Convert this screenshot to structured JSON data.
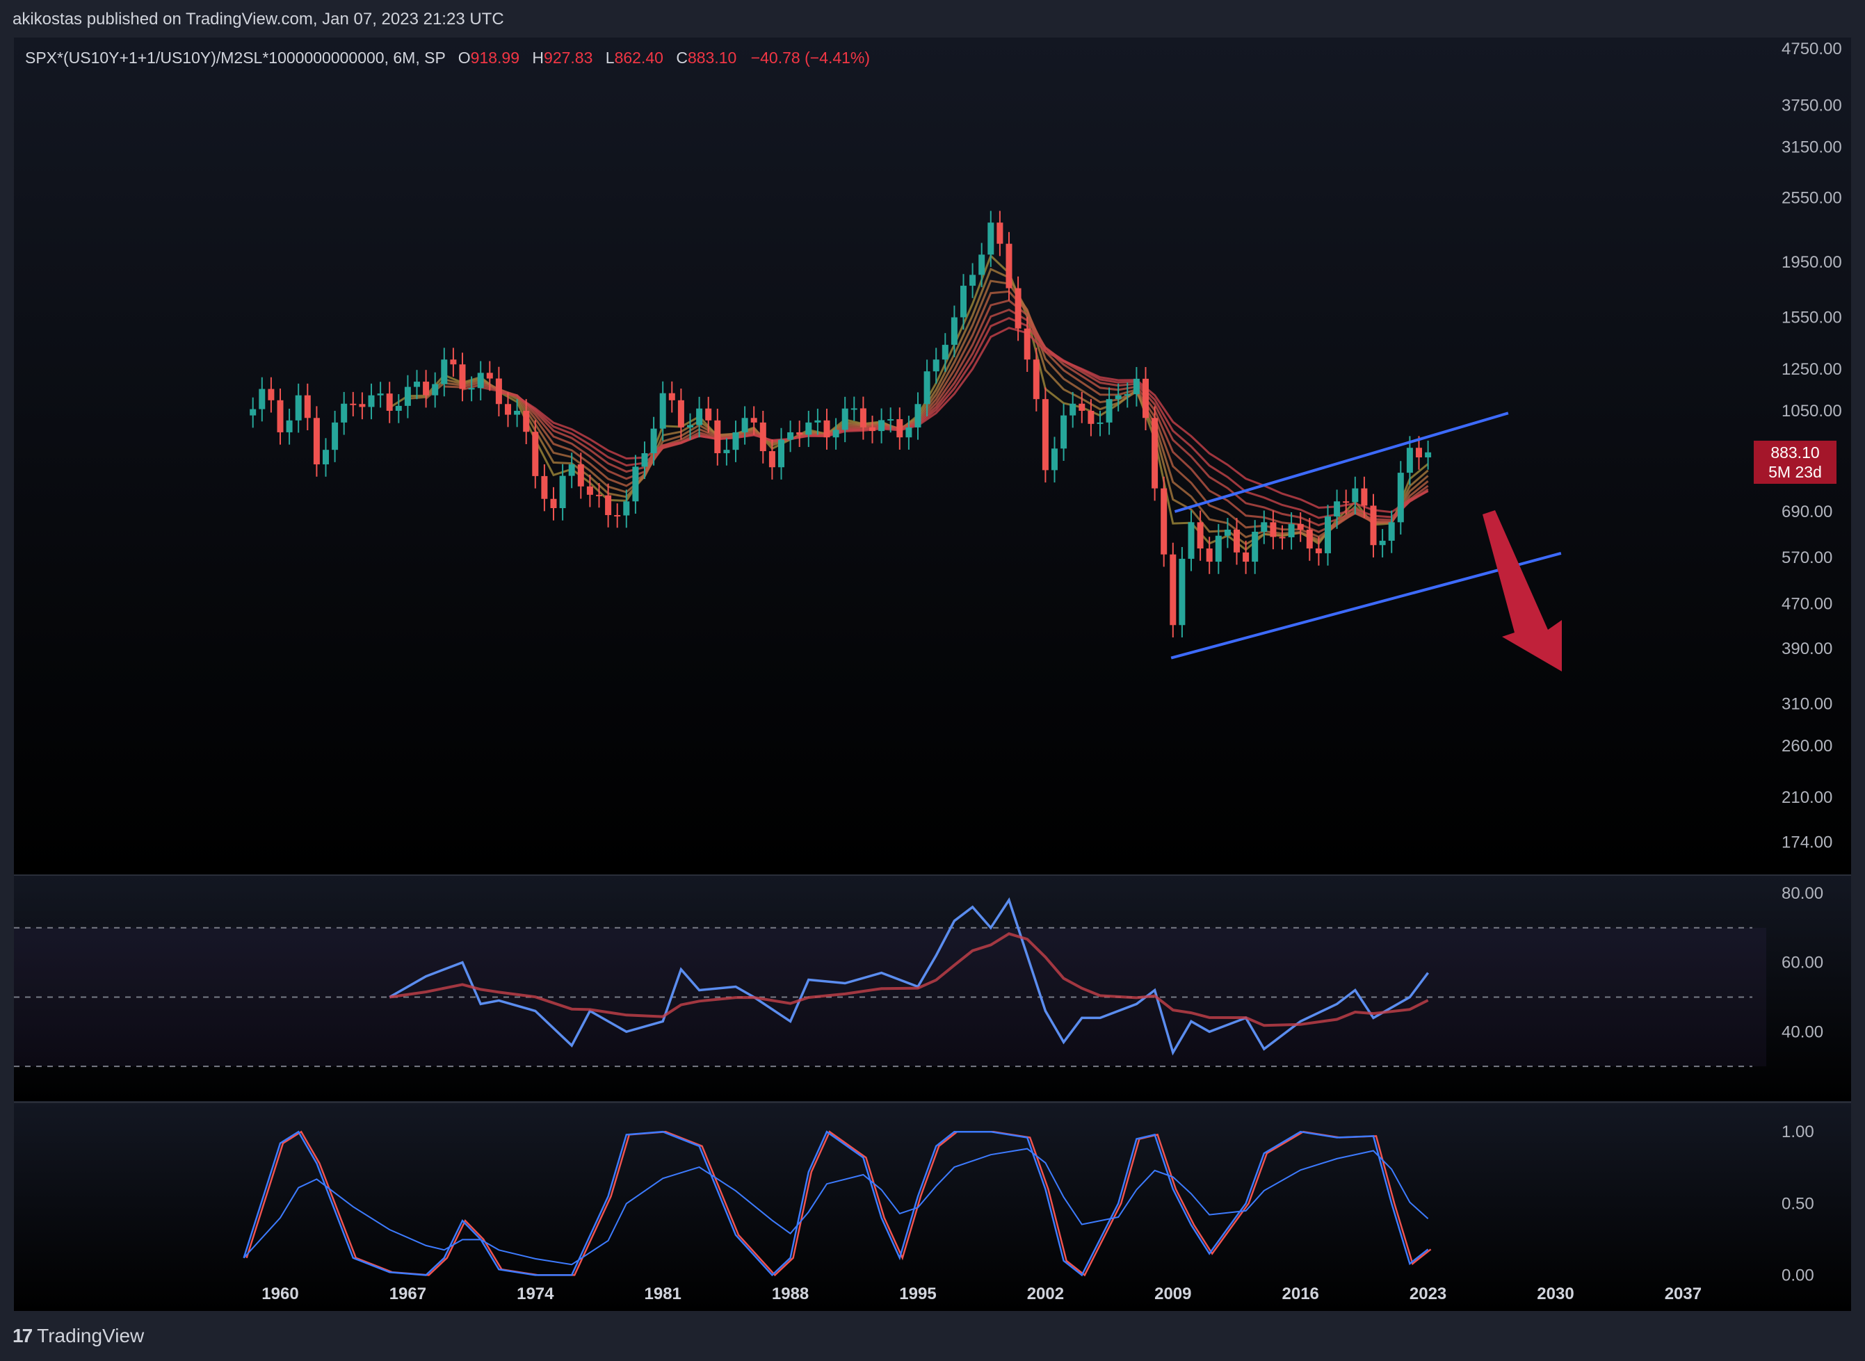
{
  "header": {
    "text": "akikostas published on TradingView.com, Jan 07, 2023 21:23 UTC"
  },
  "legend": {
    "symbol": "SPX*(US10Y+1+1/US10Y)/M2SL*1000000000000, 6M, SP",
    "o_label": "O",
    "o": "918.99",
    "h_label": "H",
    "h": "927.83",
    "l_label": "L",
    "l": "862.40",
    "c_label": "C",
    "c": "883.10",
    "change": "−40.78 (−4.41%)"
  },
  "badge": {
    "price": "883.10",
    "countdown": "5M 23d"
  },
  "footer": {
    "logo": "17",
    "brand": "TradingView"
  },
  "colors": {
    "up": "#26a69a",
    "down": "#ef5350",
    "channel": "#3d6bff",
    "arrow": "#c0213a",
    "rsi": "#5b8def",
    "bg_top": "#131722",
    "bg_bottom": "#000000"
  },
  "chart_data": [
    {
      "type": "candlestick",
      "title": "",
      "scale": "log",
      "y_ticks": [
        4750,
        3750,
        3150,
        2550,
        1950,
        1550,
        1250,
        1050,
        690,
        570,
        470,
        390,
        310,
        260,
        210,
        174
      ],
      "y_tick_labels": [
        "4750.00",
        "3750.00",
        "3150.00",
        "2550.00",
        "1950.00",
        "1550.00",
        "1250.00",
        "1050.00",
        "690.00",
        "570.00",
        "470.00",
        "390.00",
        "310.00",
        "260.00",
        "210.00",
        "174.00"
      ],
      "x_ticks": [
        1960,
        1967,
        1974,
        1981,
        1988,
        1995,
        2002,
        2009,
        2016,
        2023,
        2030,
        2037
      ],
      "price_path": [
        [
          1958,
          1030
        ],
        [
          1959,
          1150
        ],
        [
          1960,
          960
        ],
        [
          1961,
          1120
        ],
        [
          1962,
          840
        ],
        [
          1963,
          1000
        ],
        [
          1964,
          1080
        ],
        [
          1965,
          1120
        ],
        [
          1966,
          1050
        ],
        [
          1967,
          1160
        ],
        [
          1968,
          1120
        ],
        [
          1969,
          1300
        ],
        [
          1970,
          1150
        ],
        [
          1971,
          1230
        ],
        [
          1972,
          1080
        ],
        [
          1973,
          1050
        ],
        [
          1974,
          800
        ],
        [
          1975,
          700
        ],
        [
          1976,
          840
        ],
        [
          1977,
          740
        ],
        [
          1978,
          680
        ],
        [
          1979,
          720
        ],
        [
          1980,
          880
        ],
        [
          1981,
          1130
        ],
        [
          1982,
          980
        ],
        [
          1983,
          1060
        ],
        [
          1984,
          880
        ],
        [
          1985,
          960
        ],
        [
          1986,
          1000
        ],
        [
          1987,
          830
        ],
        [
          1988,
          960
        ],
        [
          1989,
          1000
        ],
        [
          1990,
          940
        ],
        [
          1991,
          1060
        ],
        [
          1992,
          980
        ],
        [
          1993,
          1010
        ],
        [
          1994,
          940
        ],
        [
          1995,
          1080
        ],
        [
          1996,
          1300
        ],
        [
          1997,
          1550
        ],
        [
          1998,
          1850
        ],
        [
          1999,
          2300
        ],
        [
          2000,
          1750
        ],
        [
          2001,
          1300
        ],
        [
          2002,
          820
        ],
        [
          2003,
          1030
        ],
        [
          2004,
          1050
        ],
        [
          2005,
          1000
        ],
        [
          2006,
          1120
        ],
        [
          2007,
          1200
        ],
        [
          2008,
          760
        ],
        [
          2009,
          430
        ],
        [
          2010,
          660
        ],
        [
          2011,
          560
        ],
        [
          2012,
          640
        ],
        [
          2013,
          560
        ],
        [
          2014,
          660
        ],
        [
          2015,
          620
        ],
        [
          2016,
          640
        ],
        [
          2017,
          580
        ],
        [
          2018,
          720
        ],
        [
          2019,
          760
        ],
        [
          2020,
          600
        ],
        [
          2021,
          660
        ],
        [
          2022,
          900
        ],
        [
          2023,
          883.1
        ]
      ],
      "trend_channel": {
        "upper": [
          [
            2009.1,
            690
          ],
          [
            2027.4,
            1040
          ]
        ],
        "lower": [
          [
            2008.9,
            375
          ],
          [
            2030.3,
            580
          ]
        ]
      },
      "forecast_arrow": "down"
    },
    {
      "type": "line",
      "title": "",
      "y_ticks": [
        80,
        60,
        40
      ],
      "y_tick_labels": [
        "80.00",
        "60.00",
        "40.00"
      ],
      "band": [
        30,
        70
      ],
      "midline": 50,
      "series": [
        {
          "values": [
            [
              1966,
              50
            ],
            [
              1968,
              56
            ],
            [
              1970,
              60
            ],
            [
              1971,
              48
            ],
            [
              1972,
              49
            ],
            [
              1974,
              46
            ],
            [
              1976,
              36
            ],
            [
              1977,
              46
            ],
            [
              1979,
              40
            ],
            [
              1981,
              43
            ],
            [
              1982,
              58
            ],
            [
              1983,
              52
            ],
            [
              1985,
              53
            ],
            [
              1986,
              50
            ],
            [
              1988,
              43
            ],
            [
              1989,
              55
            ],
            [
              1991,
              54
            ],
            [
              1993,
              57
            ],
            [
              1995,
              53
            ],
            [
              1996,
              62
            ],
            [
              1997,
              72
            ],
            [
              1998,
              76
            ],
            [
              1999,
              70
            ],
            [
              2000,
              78
            ],
            [
              2001,
              62
            ],
            [
              2002,
              46
            ],
            [
              2003,
              37
            ],
            [
              2004,
              44
            ],
            [
              2005,
              44
            ],
            [
              2007,
              48
            ],
            [
              2008,
              52
            ],
            [
              2009,
              34
            ],
            [
              2010,
              43
            ],
            [
              2011,
              40
            ],
            [
              2013,
              44
            ],
            [
              2014,
              35
            ],
            [
              2016,
              43
            ],
            [
              2018,
              48
            ],
            [
              2019,
              52
            ],
            [
              2020,
              44
            ],
            [
              2022,
              50
            ],
            [
              2023,
              57
            ]
          ]
        }
      ]
    },
    {
      "type": "line",
      "title": "",
      "y_ticks": [
        1.0,
        0.5,
        0.0
      ],
      "y_tick_labels": [
        "1.00",
        "0.50",
        "0.00"
      ],
      "series": [
        {
          "values": [
            [
              1958,
              0.12
            ],
            [
              1960,
              0.92
            ],
            [
              1961,
              1.0
            ],
            [
              1962,
              0.78
            ],
            [
              1964,
              0.12
            ],
            [
              1966,
              0.02
            ],
            [
              1968,
              0.0
            ],
            [
              1969,
              0.12
            ],
            [
              1970,
              0.38
            ],
            [
              1971,
              0.25
            ],
            [
              1972,
              0.04
            ],
            [
              1974,
              0.0
            ],
            [
              1976,
              0.0
            ],
            [
              1978,
              0.55
            ],
            [
              1979,
              0.98
            ],
            [
              1981,
              1.0
            ],
            [
              1983,
              0.9
            ],
            [
              1985,
              0.28
            ],
            [
              1987,
              0.0
            ],
            [
              1988,
              0.12
            ],
            [
              1989,
              0.72
            ],
            [
              1990,
              1.0
            ],
            [
              1992,
              0.82
            ],
            [
              1993,
              0.4
            ],
            [
              1994,
              0.12
            ],
            [
              1995,
              0.55
            ],
            [
              1996,
              0.9
            ],
            [
              1997,
              1.0
            ],
            [
              1999,
              1.0
            ],
            [
              2001,
              0.96
            ],
            [
              2002,
              0.6
            ],
            [
              2003,
              0.1
            ],
            [
              2004,
              0.0
            ],
            [
              2006,
              0.5
            ],
            [
              2007,
              0.95
            ],
            [
              2008,
              0.98
            ],
            [
              2009,
              0.6
            ],
            [
              2010,
              0.35
            ],
            [
              2011,
              0.15
            ],
            [
              2013,
              0.5
            ],
            [
              2014,
              0.85
            ],
            [
              2016,
              1.0
            ],
            [
              2018,
              0.96
            ],
            [
              2020,
              0.97
            ],
            [
              2021,
              0.5
            ],
            [
              2022,
              0.08
            ],
            [
              2023,
              0.18
            ]
          ]
        }
      ]
    }
  ]
}
